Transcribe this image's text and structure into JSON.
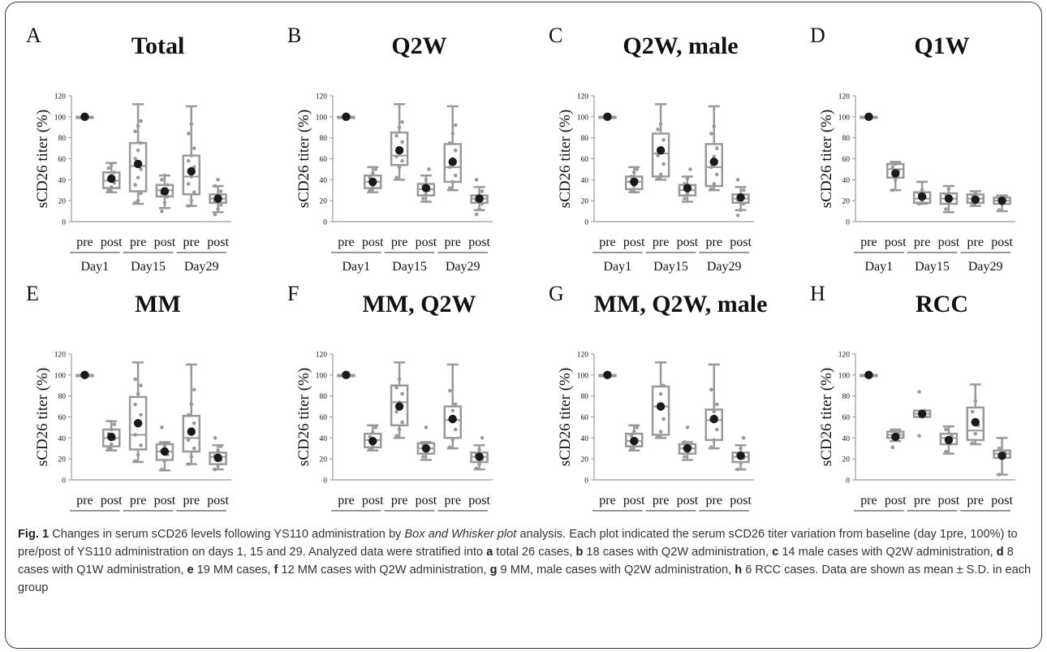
{
  "colors": {
    "box": "#999999",
    "point": "#9a9a9a",
    "mean": "#1a1a1a",
    "axis": "#999999",
    "text": "#111111"
  },
  "axis": {
    "ylabel": "sCD26 titer (%)",
    "ylim": [
      0,
      120
    ],
    "yticks": [
      "0",
      "20",
      "40",
      "60",
      "80",
      "100",
      "120"
    ],
    "pre_label": "pre",
    "post_label": "post",
    "days": [
      "Day1",
      "Day15",
      "Day29"
    ]
  },
  "chart_data": [
    {
      "type": "box",
      "letter": "A",
      "title": "Total",
      "boxes": [
        {
          "group": "Day1 pre",
          "min": 100,
          "q1": 100,
          "median": 100,
          "q3": 100,
          "max": 100,
          "mean": 100,
          "points": []
        },
        {
          "group": "Day1 post",
          "min": 28,
          "q1": 32,
          "median": 39,
          "q3": 47,
          "max": 56,
          "mean": 41,
          "points": [
            30,
            33,
            37,
            40,
            44,
            47,
            51,
            54
          ]
        },
        {
          "group": "Day15 pre",
          "min": 17,
          "q1": 29,
          "median": 53,
          "q3": 75,
          "max": 112,
          "mean": 55,
          "points": [
            18,
            20,
            27,
            35,
            42,
            50,
            60,
            68,
            75,
            86,
            91,
            96
          ]
        },
        {
          "group": "Day15 post",
          "min": 13,
          "q1": 24,
          "median": 30,
          "q3": 35,
          "max": 44,
          "mean": 29,
          "points": [
            10,
            18,
            24,
            27,
            31,
            35,
            40,
            44
          ]
        },
        {
          "group": "Day29 pre",
          "min": 15,
          "q1": 26,
          "median": 43,
          "q3": 63,
          "max": 110,
          "mean": 48,
          "points": [
            15,
            20,
            28,
            36,
            43,
            52,
            58,
            63,
            70,
            84,
            93
          ]
        },
        {
          "group": "Day29 post",
          "min": 9,
          "q1": 18,
          "median": 22,
          "q3": 26,
          "max": 34,
          "mean": 22,
          "points": [
            7,
            12,
            16,
            20,
            23,
            29,
            34,
            40
          ]
        }
      ]
    },
    {
      "type": "box",
      "letter": "B",
      "title": "Q2W",
      "boxes": [
        {
          "group": "Day1 pre",
          "min": 100,
          "q1": 100,
          "median": 100,
          "q3": 100,
          "max": 100,
          "mean": 100,
          "points": []
        },
        {
          "group": "Day1 post",
          "min": 28,
          "q1": 32,
          "median": 38,
          "q3": 44,
          "max": 52,
          "mean": 38,
          "points": [
            30,
            34,
            38,
            42,
            46,
            50
          ]
        },
        {
          "group": "Day15 pre",
          "min": 40,
          "q1": 54,
          "median": 63,
          "q3": 85,
          "max": 112,
          "mean": 68,
          "points": [
            42,
            52,
            58,
            62,
            70,
            76,
            82,
            90,
            95
          ]
        },
        {
          "group": "Day15 post",
          "min": 19,
          "q1": 25,
          "median": 31,
          "q3": 36,
          "max": 44,
          "mean": 32,
          "points": [
            22,
            26,
            30,
            34,
            40,
            50
          ]
        },
        {
          "group": "Day29 pre",
          "min": 30,
          "q1": 38,
          "median": 52,
          "q3": 74,
          "max": 110,
          "mean": 57,
          "points": [
            32,
            38,
            44,
            52,
            60,
            68,
            75,
            84,
            92
          ]
        },
        {
          "group": "Day29 post",
          "min": 11,
          "q1": 18,
          "median": 22,
          "q3": 25,
          "max": 33,
          "mean": 22,
          "points": [
            7,
            12,
            17,
            20,
            24,
            29,
            40
          ]
        }
      ]
    },
    {
      "type": "box",
      "letter": "C",
      "title": "Q2W, male",
      "boxes": [
        {
          "group": "Day1 pre",
          "min": 100,
          "q1": 100,
          "median": 100,
          "q3": 100,
          "max": 100,
          "mean": 100,
          "points": []
        },
        {
          "group": "Day1 post",
          "min": 28,
          "q1": 31,
          "median": 38,
          "q3": 43,
          "max": 52,
          "mean": 38,
          "points": [
            30,
            34,
            39,
            43,
            47,
            50
          ]
        },
        {
          "group": "Day15 pre",
          "min": 40,
          "q1": 43,
          "median": 65,
          "q3": 84,
          "max": 112,
          "mean": 68,
          "points": [
            41,
            45,
            55,
            63,
            70,
            78,
            88,
            93
          ]
        },
        {
          "group": "Day15 post",
          "min": 19,
          "q1": 25,
          "median": 30,
          "q3": 35,
          "max": 43,
          "mean": 32,
          "points": [
            22,
            27,
            31,
            36,
            41,
            50
          ]
        },
        {
          "group": "Day29 pre",
          "min": 30,
          "q1": 34,
          "median": 52,
          "q3": 74,
          "max": 110,
          "mean": 57,
          "points": [
            31,
            36,
            45,
            52,
            62,
            70,
            84,
            91
          ]
        },
        {
          "group": "Day29 post",
          "min": 11,
          "q1": 18,
          "median": 22,
          "q3": 26,
          "max": 33,
          "mean": 23,
          "points": [
            6,
            11,
            17,
            21,
            25,
            30,
            40
          ]
        }
      ]
    },
    {
      "type": "box",
      "letter": "D",
      "title": "Q1W",
      "boxes": [
        {
          "group": "Day1 pre",
          "min": 100,
          "q1": 100,
          "median": 100,
          "q3": 100,
          "max": 100,
          "mean": 100,
          "points": []
        },
        {
          "group": "Day1 post",
          "min": 30,
          "q1": 42,
          "median": 50,
          "q3": 55,
          "max": 57,
          "mean": 46,
          "points": [
            30,
            40,
            48,
            52,
            55,
            56
          ]
        },
        {
          "group": "Day15 pre",
          "min": 17,
          "q1": 18,
          "median": 22,
          "q3": 28,
          "max": 38,
          "mean": 24,
          "points": [
            17,
            20,
            23,
            27,
            30
          ]
        },
        {
          "group": "Day15 post",
          "min": 9,
          "q1": 17,
          "median": 22,
          "q3": 27,
          "max": 34,
          "mean": 22,
          "points": [
            12,
            18,
            22,
            26,
            31
          ]
        },
        {
          "group": "Day29 pre",
          "min": 15,
          "q1": 18,
          "median": 22,
          "q3": 26,
          "max": 29,
          "mean": 21,
          "points": [
            16,
            19,
            22,
            25,
            28
          ]
        },
        {
          "group": "Day29 post",
          "min": 10,
          "q1": 17,
          "median": 20,
          "q3": 23,
          "max": 25,
          "mean": 20,
          "points": [
            11,
            17,
            20,
            22,
            24
          ]
        }
      ]
    },
    {
      "type": "box",
      "letter": "E",
      "title": "MM",
      "boxes": [
        {
          "group": "Day1 pre",
          "min": 100,
          "q1": 100,
          "median": 100,
          "q3": 100,
          "max": 100,
          "mean": 100,
          "points": []
        },
        {
          "group": "Day1 post",
          "min": 28,
          "q1": 32,
          "median": 40,
          "q3": 48,
          "max": 56,
          "mean": 41,
          "points": [
            30,
            34,
            39,
            44,
            48,
            53
          ]
        },
        {
          "group": "Day15 pre",
          "min": 17,
          "q1": 29,
          "median": 43,
          "q3": 79,
          "max": 112,
          "mean": 54,
          "points": [
            18,
            24,
            33,
            43,
            55,
            62,
            72,
            82,
            90,
            96
          ]
        },
        {
          "group": "Day15 post",
          "min": 9,
          "q1": 19,
          "median": 27,
          "q3": 34,
          "max": 36,
          "mean": 27,
          "points": [
            10,
            18,
            24,
            28,
            32,
            35,
            50
          ]
        },
        {
          "group": "Day29 pre",
          "min": 15,
          "q1": 27,
          "median": 40,
          "q3": 61,
          "max": 110,
          "mean": 46,
          "points": [
            15,
            22,
            30,
            38,
            46,
            54,
            62,
            72,
            86
          ]
        },
        {
          "group": "Day29 post",
          "min": 10,
          "q1": 15,
          "median": 22,
          "q3": 26,
          "max": 33,
          "mean": 21,
          "points": [
            10,
            14,
            19,
            23,
            28,
            32,
            40
          ]
        }
      ]
    },
    {
      "type": "box",
      "letter": "F",
      "title": "MM, Q2W",
      "boxes": [
        {
          "group": "Day1 pre",
          "min": 100,
          "q1": 100,
          "median": 100,
          "q3": 100,
          "max": 100,
          "mean": 100,
          "points": []
        },
        {
          "group": "Day1 post",
          "min": 28,
          "q1": 31,
          "median": 38,
          "q3": 44,
          "max": 52,
          "mean": 37,
          "points": [
            29,
            33,
            37,
            41,
            45,
            50
          ]
        },
        {
          "group": "Day15 pre",
          "min": 40,
          "q1": 52,
          "median": 74,
          "q3": 90,
          "max": 112,
          "mean": 70,
          "points": [
            42,
            48,
            55,
            65,
            74,
            82,
            88,
            96
          ]
        },
        {
          "group": "Day15 post",
          "min": 19,
          "q1": 25,
          "median": 30,
          "q3": 35,
          "max": 36,
          "mean": 30,
          "points": [
            22,
            26,
            30,
            34,
            50
          ]
        },
        {
          "group": "Day29 pre",
          "min": 30,
          "q1": 40,
          "median": 57,
          "q3": 70,
          "max": 110,
          "mean": 58,
          "points": [
            31,
            38,
            48,
            58,
            66,
            72,
            85
          ]
        },
        {
          "group": "Day29 post",
          "min": 10,
          "q1": 17,
          "median": 22,
          "q3": 26,
          "max": 33,
          "mean": 22,
          "points": [
            11,
            15,
            20,
            24,
            29,
            40
          ]
        }
      ]
    },
    {
      "type": "box",
      "letter": "G",
      "title": "MM, Q2W, male",
      "boxes": [
        {
          "group": "Day1 pre",
          "min": 100,
          "q1": 100,
          "median": 100,
          "q3": 100,
          "max": 100,
          "mean": 100,
          "points": []
        },
        {
          "group": "Day1 post",
          "min": 28,
          "q1": 32,
          "median": 37,
          "q3": 44,
          "max": 52,
          "mean": 37,
          "points": [
            30,
            34,
            38,
            42,
            46,
            50
          ]
        },
        {
          "group": "Day15 pre",
          "min": 40,
          "q1": 43,
          "median": 70,
          "q3": 89,
          "max": 112,
          "mean": 70,
          "points": [
            41,
            46,
            58,
            70,
            82,
            90
          ]
        },
        {
          "group": "Day15 post",
          "min": 19,
          "q1": 25,
          "median": 30,
          "q3": 34,
          "max": 36,
          "mean": 30,
          "points": [
            22,
            27,
            31,
            36,
            50
          ]
        },
        {
          "group": "Day29 pre",
          "min": 30,
          "q1": 38,
          "median": 57,
          "q3": 67,
          "max": 110,
          "mean": 58,
          "points": [
            31,
            38,
            48,
            57,
            65,
            72,
            86
          ]
        },
        {
          "group": "Day29 post",
          "min": 10,
          "q1": 17,
          "median": 22,
          "q3": 26,
          "max": 33,
          "mean": 23,
          "points": [
            10,
            16,
            21,
            25,
            30,
            40
          ]
        }
      ]
    },
    {
      "type": "box",
      "letter": "H",
      "title": "RCC",
      "boxes": [
        {
          "group": "Day1 pre",
          "min": 100,
          "q1": 100,
          "median": 100,
          "q3": 100,
          "max": 100,
          "mean": 100,
          "points": []
        },
        {
          "group": "Day1 post",
          "min": 37,
          "q1": 40,
          "median": 43,
          "q3": 46,
          "max": 48,
          "mean": 41,
          "points": [
            31,
            40,
            44,
            47
          ]
        },
        {
          "group": "Day15 pre",
          "min": 60,
          "q1": 60,
          "median": 63,
          "q3": 66,
          "max": 66,
          "mean": 63,
          "points": [
            42,
            60,
            66,
            84
          ]
        },
        {
          "group": "Day15 post",
          "min": 25,
          "q1": 34,
          "median": 40,
          "q3": 44,
          "max": 51,
          "mean": 38,
          "points": [
            27,
            36,
            42,
            48
          ]
        },
        {
          "group": "Day29 pre",
          "min": 34,
          "q1": 38,
          "median": 47,
          "q3": 69,
          "max": 91,
          "mean": 55,
          "points": [
            35,
            44,
            52,
            65,
            75
          ]
        },
        {
          "group": "Day29 post",
          "min": 5,
          "q1": 21,
          "median": 25,
          "q3": 28,
          "max": 40,
          "mean": 23,
          "points": [
            5,
            22,
            26,
            30
          ]
        }
      ]
    }
  ],
  "caption": {
    "fig": "Fig. 1",
    "intro": " Changes in serum sCD26 levels following YS110 administration by ",
    "italic": "Box and Whisker plot",
    "after_italic": " analysis. Each plot indicated the serum sCD26 titer variation from baseline (day 1pre, 100%) to pre/post of YS110 administration on days 1, 15 and 29. Analyzed data were stratified into ",
    "items": [
      {
        "letter": "a",
        "text": " total 26 cases, "
      },
      {
        "letter": "b",
        "text": " 18 cases with Q2W administration, "
      },
      {
        "letter": "c",
        "text": " 14 male cases with Q2W administration, "
      },
      {
        "letter": "d",
        "text": " 8 cases with Q1W administration, "
      },
      {
        "letter": "e",
        "text": " 19 MM cases, "
      },
      {
        "letter": "f",
        "text": " 12 MM cases with Q2W administration, "
      },
      {
        "letter": "g",
        "text": " 9 MM, male cases with Q2W administration, "
      },
      {
        "letter": "h",
        "text": " 6 RCC cases. Data are shown as mean ± S.D. in each group"
      }
    ]
  }
}
